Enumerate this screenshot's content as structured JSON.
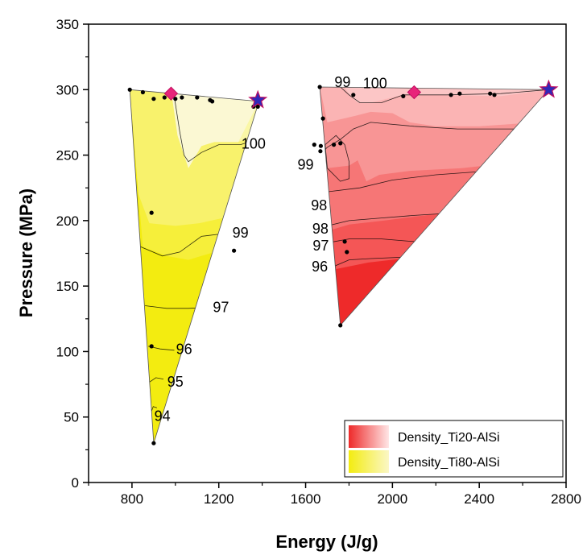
{
  "chart_data": {
    "type": "contour",
    "xlabel": "Energy (J/g)",
    "ylabel": "Pressure (MPa)",
    "xlim": [
      600,
      2800
    ],
    "ylim": [
      0,
      350
    ],
    "xticks": [
      800,
      1200,
      1600,
      2000,
      2400,
      2800
    ],
    "yticks": [
      0,
      50,
      100,
      150,
      200,
      250,
      300,
      350
    ],
    "legend": {
      "position": "bottom-right",
      "entries": [
        {
          "name": "Density_Ti20-AlSi",
          "colors": [
            "#ee2a2a",
            "#ffe6e6"
          ]
        },
        {
          "name": "Density_Ti80-AlSi",
          "colors": [
            "#f3ec10",
            "#fbf7c6"
          ]
        }
      ]
    },
    "series": [
      {
        "name": "Density_Ti80-AlSi",
        "region": [
          [
            790,
            300
          ],
          [
            1385,
            291
          ],
          [
            900,
            30
          ]
        ],
        "bands": [
          {
            "color": "#f6ef3a",
            "poly": [
              [
                790,
                300
              ],
              [
                1385,
                291
              ],
              [
                1280,
                190
              ],
              [
                1180,
                176
              ],
              [
                1060,
                170
              ],
              [
                960,
                173
              ],
              [
                850,
                180
              ]
            ]
          },
          {
            "color": "#f8f26c",
            "poly": [
              [
                790,
                300
              ],
              [
                1385,
                291
              ],
              [
                1320,
                230
              ],
              [
                1220,
                202
              ],
              [
                1110,
                198
              ],
              [
                1000,
                196
              ],
              [
                880,
                198
              ],
              [
                830,
                220
              ]
            ]
          },
          {
            "color": "#faf7a6",
            "poly": [
              [
                790,
                300
              ],
              [
                1385,
                291
              ],
              [
                1360,
                265
              ],
              [
                1290,
                260
              ],
              [
                1180,
                260
              ],
              [
                1120,
                257
              ],
              [
                1060,
                240
              ],
              [
                1010,
                265
              ],
              [
                980,
                300
              ]
            ]
          },
          {
            "color": "#fbf8d3",
            "poly": [
              [
                980,
                300
              ],
              [
                1010,
                265
              ],
              [
                1060,
                240
              ],
              [
                1120,
                257
              ],
              [
                1180,
                260
              ],
              [
                1290,
                260
              ],
              [
                1385,
                291
              ]
            ]
          }
        ],
        "contours": [
          {
            "level": "94",
            "points": [
              [
                880,
                50
              ],
              [
                898,
                58
              ],
              [
                915,
                57
              ]
            ]
          },
          {
            "level": "95",
            "points": [
              [
                875,
                76
              ],
              [
                910,
                80
              ],
              [
                945,
                79
              ]
            ]
          },
          {
            "level": "96",
            "points": [
              [
                875,
                104
              ],
              [
                930,
                102
              ],
              [
                995,
                101
              ]
            ]
          },
          {
            "level": "97",
            "points": [
              [
                860,
                135
              ],
              [
                960,
                133
              ],
              [
                1060,
                133
              ],
              [
                1180,
                134
              ]
            ]
          },
          {
            "level": "99",
            "points": [
              [
                840,
                180
              ],
              [
                940,
                173
              ],
              [
                1020,
                176
              ],
              [
                1120,
                188
              ],
              [
                1220,
                190
              ],
              [
                1300,
                190
              ]
            ]
          },
          {
            "level": "100",
            "points": [
              [
                990,
                300
              ],
              [
                1020,
                268
              ],
              [
                1040,
                250
              ],
              [
                1060,
                245
              ],
              [
                1120,
                252
              ],
              [
                1200,
                258
              ],
              [
                1300,
                258
              ],
              [
                1375,
                262
              ]
            ]
          }
        ],
        "contour_labels": [
          {
            "text": "94",
            "x": 940,
            "y": 50
          },
          {
            "text": "95",
            "x": 1000,
            "y": 76
          },
          {
            "text": "96",
            "x": 1040,
            "y": 101
          },
          {
            "text": "97",
            "x": 1210,
            "y": 133
          },
          {
            "text": "99",
            "x": 1300,
            "y": 190
          },
          {
            "text": "100",
            "x": 1360,
            "y": 258
          }
        ],
        "points": [
          [
            790,
            300
          ],
          [
            850,
            298
          ],
          [
            900,
            293
          ],
          [
            950,
            294
          ],
          [
            1000,
            293
          ],
          [
            1030,
            294
          ],
          [
            1100,
            294
          ],
          [
            1160,
            292
          ],
          [
            1170,
            291
          ],
          [
            1360,
            287
          ],
          [
            1380,
            287
          ],
          [
            890,
            206
          ],
          [
            890,
            104
          ],
          [
            1270,
            177
          ],
          [
            900,
            30
          ]
        ],
        "marker_diamond": [
          980,
          297
        ],
        "marker_star": [
          1380,
          292
        ]
      },
      {
        "name": "Density_Ti20-AlSi",
        "region": [
          [
            1665,
            302
          ],
          [
            2720,
            300
          ],
          [
            1760,
            120
          ]
        ],
        "bands": [
          {
            "color": "#f45656",
            "poly": [
              [
                1665,
                302
              ],
              [
                2720,
                300
              ],
              [
                2370,
                175
              ],
              [
                2100,
                172
              ],
              [
                1890,
                168
              ],
              [
                1740,
                163
              ]
            ]
          },
          {
            "color": "#f67676",
            "poly": [
              [
                1665,
                302
              ],
              [
                2720,
                300
              ],
              [
                2490,
                212
              ],
              [
                2200,
                205
              ],
              [
                1960,
                200
              ],
              [
                1800,
                197
              ],
              [
                1700,
                192
              ]
            ]
          },
          {
            "color": "#f89595",
            "poly": [
              [
                1665,
                302
              ],
              [
                2720,
                300
              ],
              [
                2590,
                245
              ],
              [
                2320,
                240
              ],
              [
                2080,
                238
              ],
              [
                1940,
                235
              ],
              [
                1880,
                230
              ],
              [
                1840,
                246
              ],
              [
                1800,
                242
              ],
              [
                1700,
                240
              ]
            ]
          },
          {
            "color": "#fbb4b4",
            "poly": [
              [
                1665,
                302
              ],
              [
                2720,
                300
              ],
              [
                2660,
                275
              ],
              [
                2400,
                272
              ],
              [
                2200,
                272
              ],
              [
                2080,
                275
              ],
              [
                2000,
                282
              ],
              [
                1900,
                283
              ],
              [
                1830,
                280
              ],
              [
                1700,
                275
              ]
            ]
          },
          {
            "color": "#fcc6c6",
            "poly": [
              [
                1780,
                302
              ],
              [
                1800,
                296
              ],
              [
                1840,
                290
              ],
              [
                1900,
                290
              ],
              [
                2050,
                296
              ],
              [
                2200,
                296
              ],
              [
                2500,
                295
              ],
              [
                2720,
                300
              ]
            ]
          }
        ],
        "contours": [
          {
            "level": "96",
            "points": [
              [
                1730,
                165
              ],
              [
                1800,
                170
              ],
              [
                1900,
                171
              ],
              [
                2040,
                172
              ],
              [
                2200,
                171
              ]
            ]
          },
          {
            "level": "97",
            "points": [
              [
                1700,
                183
              ],
              [
                1800,
                186
              ],
              [
                1950,
                186
              ],
              [
                2100,
                184
              ],
              [
                2280,
                183
              ],
              [
                2350,
                184
              ]
            ]
          },
          {
            "level": "98",
            "points": [
              [
                1700,
                196
              ],
              [
                1800,
                200
              ],
              [
                1950,
                202
              ],
              [
                2100,
                204
              ],
              [
                2300,
                206
              ],
              [
                2450,
                208
              ]
            ]
          },
          {
            "level": "98",
            "points": [
              [
                1700,
                222
              ],
              [
                1850,
                225
              ],
              [
                2000,
                231
              ],
              [
                2200,
                235
              ],
              [
                2450,
                238
              ],
              [
                2560,
                240
              ]
            ]
          },
          {
            "level": "99",
            "points": [
              [
                1665,
                250
              ],
              [
                1700,
                256
              ],
              [
                1760,
                262
              ],
              [
                1820,
                270
              ],
              [
                1900,
                275
              ],
              [
                2100,
                272
              ],
              [
                2300,
                270
              ],
              [
                2640,
                270
              ]
            ]
          },
          {
            "level": "99",
            "points": [
              [
                1690,
                258
              ],
              [
                1740,
                265
              ],
              [
                1780,
                258
              ],
              [
                1800,
                245
              ],
              [
                1800,
                232
              ],
              [
                1760,
                230
              ],
              [
                1700,
                240
              ],
              [
                1690,
                258
              ]
            ]
          },
          {
            "level": "100",
            "points": [
              [
                1760,
                302
              ],
              [
                1800,
                296
              ],
              [
                1850,
                290
              ],
              [
                1950,
                290
              ],
              [
                2050,
                296
              ],
              [
                2250,
                296
              ],
              [
                2500,
                297
              ],
              [
                2720,
                300
              ]
            ]
          }
        ],
        "contour_labels": [
          {
            "text": "96",
            "x": 1665,
            "y": 164
          },
          {
            "text": "97",
            "x": 1670,
            "y": 180
          },
          {
            "text": "98",
            "x": 1668,
            "y": 193
          },
          {
            "text": "98",
            "x": 1662,
            "y": 211
          },
          {
            "text": "99",
            "x": 1600,
            "y": 242
          },
          {
            "text": "99",
            "x": 1770,
            "y": 305
          },
          {
            "text": "100",
            "x": 1920,
            "y": 304
          }
        ],
        "points": [
          [
            1665,
            302
          ],
          [
            1680,
            278
          ],
          [
            1640,
            258
          ],
          [
            1668,
            253
          ],
          [
            1670,
            257
          ],
          [
            1730,
            258
          ],
          [
            1760,
            259
          ],
          [
            1820,
            296
          ],
          [
            2050,
            295
          ],
          [
            2100,
            298
          ],
          [
            2270,
            296
          ],
          [
            2310,
            297
          ],
          [
            2450,
            297
          ],
          [
            2470,
            296
          ],
          [
            1780,
            184
          ],
          [
            1790,
            176
          ],
          [
            1760,
            120
          ]
        ],
        "marker_diamond": [
          2100,
          298
        ],
        "marker_star": [
          2720,
          300
        ]
      }
    ]
  }
}
